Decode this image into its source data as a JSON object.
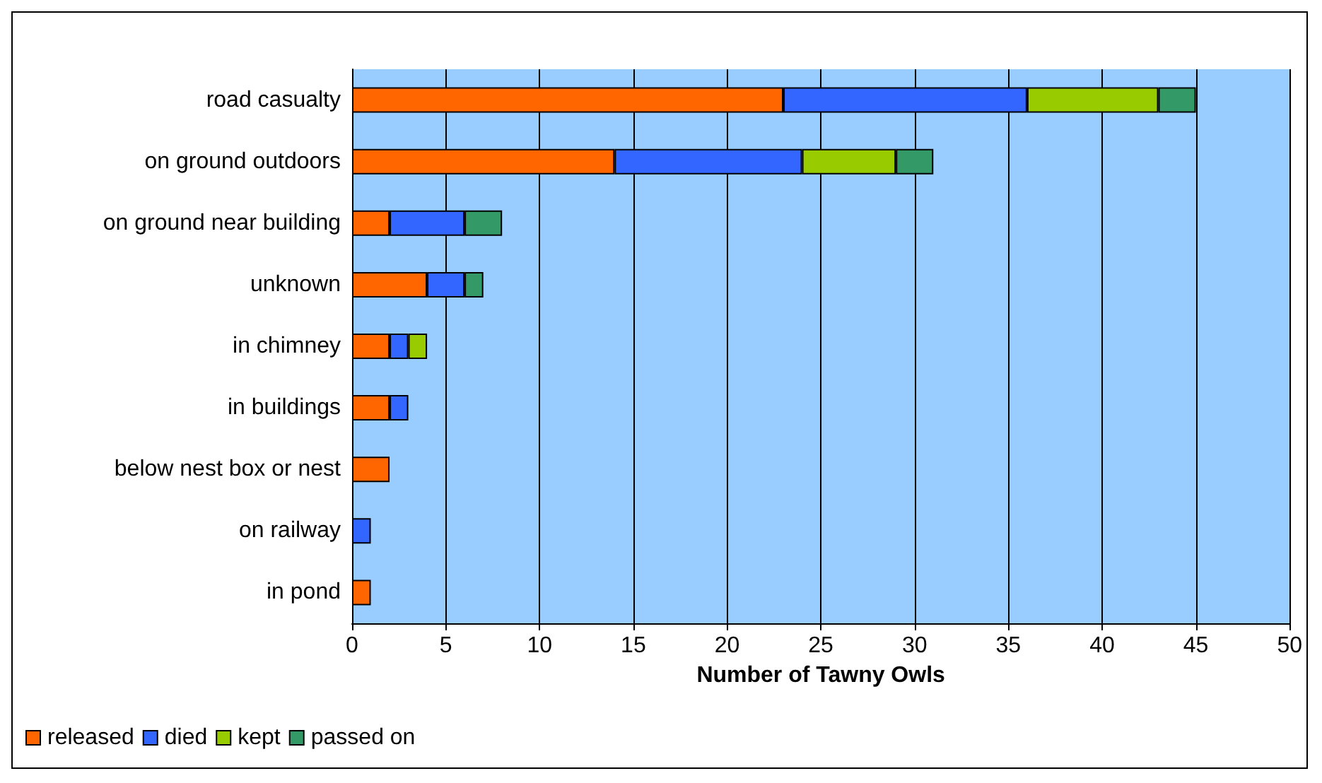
{
  "chart_data": {
    "type": "bar",
    "orientation": "horizontal",
    "stacked": true,
    "xlabel": "Number of Tawny Owls",
    "categories": [
      "road casualty",
      "on ground outdoors",
      "on ground near building",
      "unknown",
      "in chimney",
      "in buildings",
      "below nest box or nest",
      "on railway",
      "in pond"
    ],
    "series": [
      {
        "name": "released",
        "color": "#ff6600",
        "values": [
          23,
          14,
          2,
          4,
          2,
          2,
          2,
          0,
          1
        ]
      },
      {
        "name": "died",
        "color": "#3366ff",
        "values": [
          13,
          10,
          4,
          2,
          1,
          1,
          0,
          1,
          0
        ]
      },
      {
        "name": "kept",
        "color": "#99cc00",
        "values": [
          7,
          5,
          0,
          0,
          1,
          0,
          0,
          0,
          0
        ]
      },
      {
        "name": "passed on",
        "color": "#339966",
        "values": [
          2,
          2,
          2,
          1,
          0,
          0,
          0,
          0,
          0
        ]
      }
    ],
    "xlim": [
      0,
      50
    ],
    "xticks": [
      0,
      5,
      10,
      15,
      20,
      25,
      30,
      35,
      40,
      45,
      50
    ],
    "grid": "x",
    "legend": "bottom left"
  }
}
